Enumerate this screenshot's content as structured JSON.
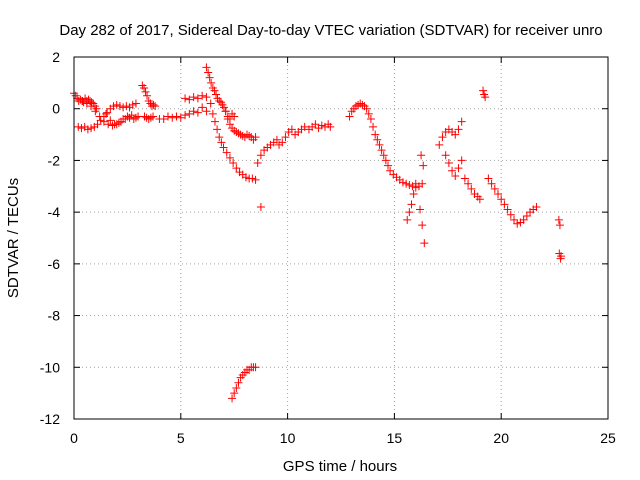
{
  "chart_data": {
    "type": "scatter",
    "title": "Day 282 of 2017, Sidereal Day-to-day VTEC variation (SDTVAR) for receiver unro",
    "xlabel": "GPS time / hours",
    "ylabel": "SDTVAR / TECUs",
    "xlim": [
      0,
      25
    ],
    "ylim": [
      -12,
      2
    ],
    "xticks": [
      0,
      5,
      10,
      15,
      20,
      25
    ],
    "yticks": [
      2,
      0,
      -2,
      -4,
      -6,
      -8,
      -10,
      -12
    ],
    "xtick_labels": [
      "0",
      "5",
      "10",
      "15",
      "20",
      "25"
    ],
    "ytick_labels": [
      "2",
      "0",
      "-2",
      "-4",
      "-6",
      "-8",
      "-10",
      "-12"
    ],
    "grid": true,
    "marker": "+",
    "color": "#ff0000",
    "series": [
      {
        "name": "SDTVAR",
        "x": [
          0.0,
          0.08,
          0.15,
          0.22,
          0.3,
          0.38,
          0.45,
          0.52,
          0.6,
          0.68,
          0.75,
          0.82,
          0.9,
          0.98,
          1.05,
          0.2,
          0.35,
          0.5,
          0.65,
          0.8,
          0.95,
          1.1,
          1.25,
          1.4,
          1.55,
          1.7,
          1.85,
          2.0,
          2.15,
          2.3,
          2.45,
          2.6,
          2.75,
          2.9,
          0.4,
          0.6,
          0.8,
          1.0,
          1.2,
          1.4,
          1.6,
          1.8,
          2.0,
          2.2,
          2.4,
          2.6,
          2.8,
          3.0,
          1.5,
          1.7,
          1.9,
          2.1,
          2.3,
          2.5,
          2.7,
          2.9,
          3.2,
          3.28,
          3.35,
          3.42,
          3.5,
          3.58,
          3.65,
          3.72,
          3.8,
          3.3,
          3.4,
          3.5,
          3.6,
          3.7,
          4.0,
          4.2,
          4.4,
          4.6,
          4.8,
          5.0,
          5.2,
          5.4,
          5.6,
          5.8,
          6.0,
          6.2,
          5.2,
          5.4,
          5.6,
          5.8,
          6.0,
          6.2,
          6.4,
          6.2,
          6.28,
          6.35,
          6.42,
          6.5,
          6.58,
          6.65,
          6.72,
          6.8,
          6.88,
          6.95,
          7.02,
          7.1,
          7.2,
          7.3,
          7.4,
          7.5,
          7.1,
          7.2,
          7.3,
          7.4,
          7.5,
          7.6,
          7.7,
          7.8,
          7.9,
          8.0,
          8.1,
          8.2,
          8.3,
          8.4,
          8.5,
          6.5,
          6.6,
          6.7,
          6.8,
          6.9,
          7.0,
          7.15,
          7.3,
          7.45,
          7.6,
          7.75,
          7.9,
          8.05,
          8.2,
          8.35,
          8.5,
          8.6,
          8.75,
          8.9,
          9.05,
          9.2,
          9.35,
          9.5,
          8.75,
          9.6,
          9.75,
          9.9,
          10.05,
          10.2,
          10.35,
          10.5,
          10.65,
          10.8,
          11.0,
          11.15,
          11.3,
          11.45,
          11.6,
          11.75,
          11.9,
          12.0,
          7.4,
          7.5,
          7.6,
          7.7,
          7.8,
          7.9,
          8.0,
          8.1,
          8.2,
          8.3,
          8.4,
          8.5,
          12.9,
          13.0,
          13.1,
          13.2,
          13.3,
          13.4,
          13.5,
          13.6,
          13.7,
          13.8,
          13.9,
          14.0,
          14.1,
          14.2,
          14.3,
          14.4,
          14.5,
          14.6,
          14.7,
          14.8,
          14.95,
          15.1,
          15.25,
          15.4,
          15.55,
          15.7,
          15.85,
          16.0,
          16.15,
          16.3,
          15.6,
          15.7,
          15.8,
          15.9,
          16.0,
          16.2,
          16.3,
          16.4,
          16.25,
          16.35,
          17.1,
          17.25,
          17.4,
          17.55,
          17.7,
          17.85,
          18.0,
          18.15,
          17.4,
          17.55,
          17.7,
          17.85,
          18.0,
          18.15,
          18.3,
          18.45,
          18.6,
          18.75,
          18.9,
          19.0,
          19.15,
          19.2,
          19.25,
          19.4,
          19.55,
          19.7,
          19.85,
          20.0,
          20.15,
          20.3,
          20.45,
          20.6,
          20.75,
          20.9,
          21.05,
          21.2,
          21.35,
          21.5,
          21.65,
          22.7,
          22.75,
          22.8,
          22.72,
          22.78
        ],
        "y": [
          0.6,
          0.5,
          0.4,
          0.3,
          0.35,
          0.3,
          0.25,
          0.4,
          0.3,
          0.35,
          0.3,
          0.25,
          0.2,
          0.1,
          0.0,
          -0.7,
          -0.75,
          -0.7,
          -0.8,
          -0.75,
          -0.7,
          -0.6,
          -0.45,
          -0.3,
          -0.15,
          0.0,
          0.1,
          0.15,
          0.1,
          0.05,
          0.1,
          0.05,
          0.15,
          0.2,
          0.3,
          0.2,
          0.1,
          -0.1,
          -0.3,
          -0.5,
          -0.6,
          -0.65,
          -0.6,
          -0.5,
          -0.4,
          -0.35,
          -0.4,
          -0.3,
          -0.2,
          -0.45,
          -0.6,
          -0.55,
          -0.4,
          -0.3,
          -0.25,
          -0.35,
          0.9,
          0.8,
          0.65,
          0.5,
          0.3,
          0.2,
          0.1,
          0.15,
          0.1,
          -0.3,
          -0.35,
          -0.4,
          -0.35,
          -0.3,
          -0.4,
          -0.4,
          -0.3,
          -0.35,
          -0.3,
          -0.35,
          -0.25,
          -0.2,
          -0.1,
          -0.15,
          0.05,
          -0.1,
          0.4,
          0.35,
          0.45,
          0.4,
          0.5,
          0.45,
          0.2,
          1.6,
          1.4,
          1.2,
          1.0,
          0.8,
          0.7,
          0.55,
          0.4,
          0.3,
          0.25,
          0.15,
          0.05,
          -0.1,
          -0.3,
          -0.4,
          -0.2,
          -0.3,
          -0.1,
          -0.4,
          -0.6,
          -0.75,
          -0.85,
          -0.9,
          -0.95,
          -1.0,
          -1.05,
          -1.1,
          -1.0,
          -1.05,
          -1.1,
          -1.2,
          -1.1,
          -0.2,
          -0.5,
          -0.8,
          -1.1,
          -1.3,
          -1.5,
          -1.7,
          -1.9,
          -2.1,
          -2.3,
          -2.45,
          -2.55,
          -2.65,
          -2.7,
          -2.7,
          -2.75,
          -2.1,
          -1.8,
          -1.6,
          -1.5,
          -1.4,
          -1.3,
          -1.2,
          -3.8,
          -1.4,
          -1.3,
          -1.1,
          -0.9,
          -0.8,
          -1.0,
          -0.9,
          -0.8,
          -0.7,
          -0.8,
          -0.7,
          -0.6,
          -0.75,
          -0.65,
          -0.7,
          -0.6,
          -0.7,
          -11.2,
          -11.0,
          -10.8,
          -10.6,
          -10.4,
          -10.3,
          -10.2,
          -10.1,
          -10.1,
          -10.0,
          -10.0,
          -10.0,
          -0.3,
          -0.1,
          0.0,
          0.1,
          0.15,
          0.2,
          0.15,
          0.1,
          0.0,
          -0.2,
          -0.4,
          -0.7,
          -1.0,
          -1.2,
          -1.4,
          -1.6,
          -1.8,
          -2.0,
          -2.2,
          -2.4,
          -2.55,
          -2.65,
          -2.75,
          -2.85,
          -2.9,
          -2.95,
          -3.0,
          -3.05,
          -3.0,
          -2.9,
          -4.3,
          -4.0,
          -3.7,
          -3.3,
          -2.9,
          -3.9,
          -4.5,
          -5.2,
          -1.8,
          -2.2,
          -1.4,
          -1.1,
          -0.9,
          -0.8,
          -0.9,
          -1.0,
          -0.8,
          -0.5,
          -1.8,
          -2.1,
          -2.4,
          -2.6,
          -2.3,
          -2.0,
          -2.7,
          -2.9,
          -3.1,
          -3.3,
          -3.4,
          -3.5,
          0.7,
          0.55,
          0.45,
          -2.7,
          -2.9,
          -3.1,
          -3.3,
          -3.5,
          -3.7,
          -3.9,
          -4.1,
          -4.3,
          -4.45,
          -4.4,
          -4.3,
          -4.15,
          -4.0,
          -3.9,
          -3.8,
          -4.3,
          -4.5,
          -5.7,
          -5.6,
          -5.8
        ]
      }
    ]
  }
}
